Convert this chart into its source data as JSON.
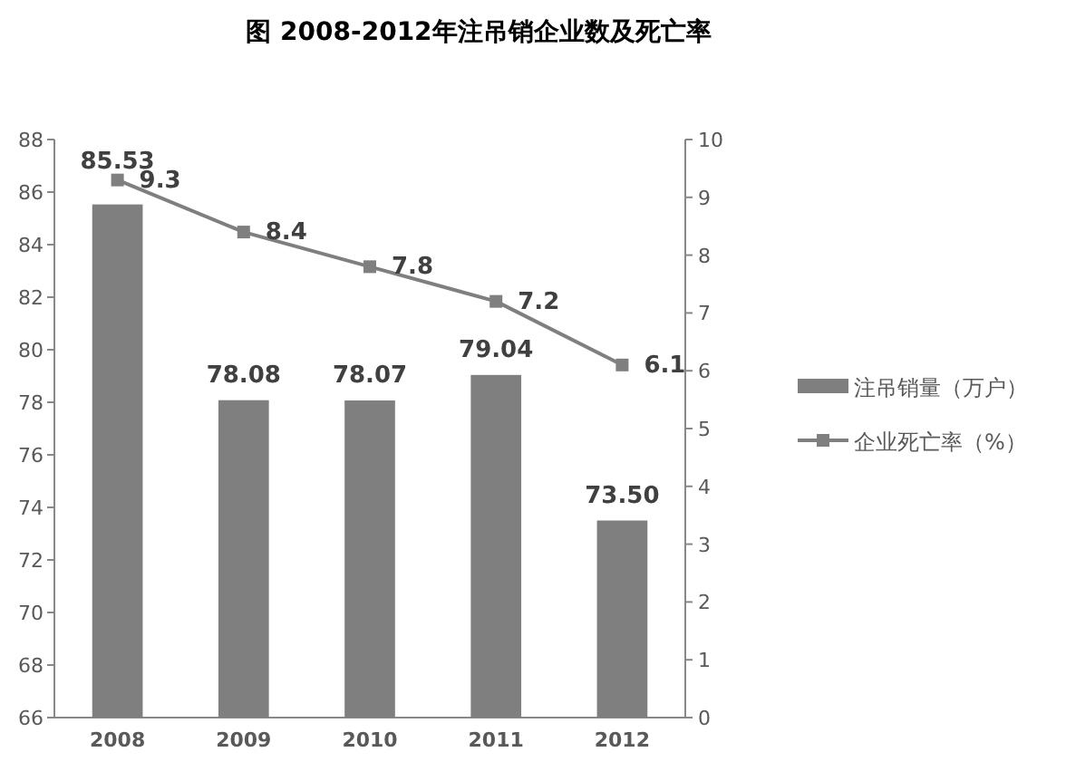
{
  "chart_data": {
    "type": "bar",
    "title": "图  2008-2012年注吊销企业数及死亡率",
    "categories": [
      "2008",
      "2009",
      "2010",
      "2011",
      "2012"
    ],
    "series": [
      {
        "name": "注吊销量（万户）",
        "color": "#7f7f7f",
        "values": [
          85.53,
          78.08,
          78.07,
          79.04,
          73.5
        ],
        "value_labels": [
          "85.53",
          "78.08",
          "78.07",
          "79.04",
          "73.50"
        ]
      },
      {
        "name": "企业死亡率（%）",
        "type": "line",
        "axis": "y2",
        "color": "#7f7f7f",
        "marker": "square",
        "values": [
          9.3,
          8.4,
          7.8,
          7.2,
          6.1
        ],
        "value_labels": [
          "9.3",
          "8.4",
          "7.8",
          "7.2",
          "6.1"
        ]
      }
    ],
    "ylim": [
      66,
      88
    ],
    "yticks": [
      66,
      68,
      70,
      72,
      74,
      76,
      78,
      80,
      82,
      84,
      86,
      88
    ],
    "y2lim": [
      0,
      10
    ],
    "y2ticks": [
      0,
      1,
      2,
      3,
      4,
      5,
      6,
      7,
      8,
      9,
      10
    ],
    "grid": false,
    "legend": "right"
  }
}
